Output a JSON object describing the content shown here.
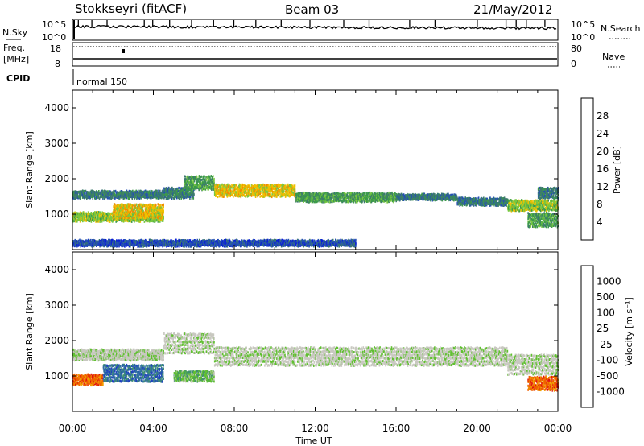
{
  "header": {
    "station": "Stokkseyri (fitACF)",
    "beam": "Beam 03",
    "date": "21/May/2012"
  },
  "noise_panel": {
    "left_label": "N.Sky",
    "right_label": "N.Search",
    "left_ticks": [
      "10^5",
      "10^0"
    ],
    "right_ticks": [
      "10^5",
      "10^0"
    ]
  },
  "freq_panel": {
    "left_label_1": "Freq.",
    "left_label_2": "[MHz]",
    "right_label": "Nave",
    "left_ticks": [
      "18",
      "8"
    ],
    "right_ticks": [
      "80",
      "0"
    ]
  },
  "cpid": {
    "label": "CPID",
    "mode": "normal 150"
  },
  "x_axis": {
    "label": "Time UT",
    "ticks": [
      "00:00",
      "04:00",
      "08:00",
      "12:00",
      "16:00",
      "20:00",
      "00:00"
    ]
  },
  "chart_data": [
    {
      "type": "heatmap",
      "title": "",
      "ylabel": "Slant Range [km]",
      "xlabel": "Time UT",
      "x_range_hours": [
        0,
        24
      ],
      "ylim": [
        0,
        4500
      ],
      "y_ticks": [
        "1000",
        "2000",
        "3000",
        "4000"
      ],
      "colorbar": {
        "label": "Power [dB]",
        "ticks": [
          "4",
          "8",
          "12",
          "16",
          "20",
          "24",
          "28"
        ],
        "colors": [
          "#0a1ed6",
          "#2450b4",
          "#3c7a6e",
          "#3c9a4a",
          "#78c840",
          "#f0c000",
          "#f08c00",
          "#f04a00",
          "#e01010"
        ]
      },
      "bands": [
        {
          "t": [
            0.0,
            4.5
          ],
          "range": [
            1500,
            1700
          ],
          "level": 2
        },
        {
          "t": [
            0.0,
            4.5
          ],
          "range": [
            850,
            1100
          ],
          "level": 4
        },
        {
          "t": [
            2.0,
            4.5
          ],
          "range": [
            950,
            1350
          ],
          "level": 5
        },
        {
          "t": [
            4.5,
            6.0
          ],
          "range": [
            1500,
            1800
          ],
          "level": 2
        },
        {
          "t": [
            5.5,
            7.0
          ],
          "range": [
            1750,
            2150
          ],
          "level": 3
        },
        {
          "t": [
            7.0,
            11.0
          ],
          "range": [
            1550,
            1900
          ],
          "level": 5
        },
        {
          "t": [
            11.0,
            16.0
          ],
          "range": [
            1400,
            1650
          ],
          "level": 3
        },
        {
          "t": [
            16.0,
            19.0
          ],
          "range": [
            1450,
            1600
          ],
          "level": 2
        },
        {
          "t": [
            19.0,
            21.5
          ],
          "range": [
            1300,
            1500
          ],
          "level": 2
        },
        {
          "t": [
            21.5,
            24.0
          ],
          "range": [
            1150,
            1450
          ],
          "level": 4
        },
        {
          "t": [
            22.5,
            24.0
          ],
          "range": [
            700,
            1100
          ],
          "level": 3
        },
        {
          "t": [
            23.0,
            24.0
          ],
          "range": [
            1500,
            1800
          ],
          "level": 2
        },
        {
          "t": [
            0.0,
            14.0
          ],
          "range": [
            150,
            300
          ],
          "level": 1
        }
      ]
    },
    {
      "type": "heatmap",
      "title": "",
      "ylabel": "Slant Range [km]",
      "xlabel": "Time UT",
      "x_range_hours": [
        0,
        24
      ],
      "ylim": [
        0,
        4500
      ],
      "y_ticks": [
        "1000",
        "2000",
        "3000",
        "4000"
      ],
      "colorbar": {
        "label": "Velocity [m s⁻¹]",
        "ticks": [
          "1000",
          "500",
          "100",
          "25",
          "-25",
          "-100",
          "-500",
          "-1000"
        ],
        "colors": [
          "#2040c0",
          "#3070a0",
          "#409070",
          "#60c030",
          "#c8c8c0",
          "#c8c8c0",
          "#f0a000",
          "#f06000",
          "#e01010"
        ]
      },
      "bands": [
        {
          "t": [
            0.0,
            4.5
          ],
          "range": [
            1500,
            1800
          ],
          "level": 4
        },
        {
          "t": [
            0.0,
            1.5
          ],
          "range": [
            800,
            1100
          ],
          "level": 7
        },
        {
          "t": [
            1.5,
            4.5
          ],
          "range": [
            900,
            1400
          ],
          "level": 1
        },
        {
          "t": [
            4.5,
            7.0
          ],
          "range": [
            1700,
            2300
          ],
          "level": 4
        },
        {
          "t": [
            7.0,
            21.5
          ],
          "range": [
            1350,
            1900
          ],
          "level": 4
        },
        {
          "t": [
            21.5,
            24.0
          ],
          "range": [
            1100,
            1700
          ],
          "level": 4
        },
        {
          "t": [
            22.5,
            24.0
          ],
          "range": [
            650,
            1050
          ],
          "level": 7
        },
        {
          "t": [
            5.0,
            7.0
          ],
          "range": [
            900,
            1200
          ],
          "level": 3
        }
      ]
    }
  ]
}
